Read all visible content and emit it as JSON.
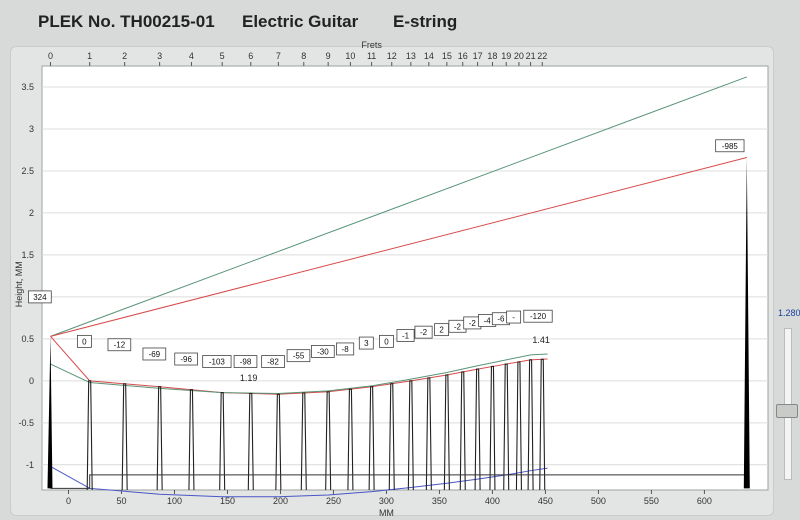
{
  "header": {
    "plek_no": "PLEK No. TH00215-01",
    "instrument": "Electric Guitar",
    "string": "E-string"
  },
  "side_panel": {
    "value": "1.280"
  },
  "chart_data": {
    "type": "line",
    "title": "PLEK No. TH00215-01 Electric Guitar E-string",
    "xlabel": "MM",
    "ylabel": "Height, MM",
    "top_axis_label": "Frets",
    "xlim": [
      -25,
      660
    ],
    "ylim": [
      -1.3,
      3.75
    ],
    "x_ticks": [
      0,
      50,
      100,
      150,
      200,
      250,
      300,
      350,
      400,
      450,
      500,
      550,
      600
    ],
    "y_ticks": [
      -1,
      -0.5,
      0,
      0.5,
      1,
      1.5,
      2,
      2.5,
      3,
      3.5
    ],
    "y_tick_labels": [
      "-1",
      "-0.5",
      "0",
      "0.5",
      "1",
      "1.5",
      "2",
      "2.5",
      "3",
      "3.5"
    ],
    "frets": [
      {
        "label": "0",
        "mm": -17
      },
      {
        "label": "1",
        "mm": 20
      },
      {
        "label": "2",
        "mm": 53
      },
      {
        "label": "3",
        "mm": 86
      },
      {
        "label": "4",
        "mm": 116
      },
      {
        "label": "5",
        "mm": 145
      },
      {
        "label": "6",
        "mm": 172
      },
      {
        "label": "7",
        "mm": 198
      },
      {
        "label": "8",
        "mm": 222
      },
      {
        "label": "9",
        "mm": 245
      },
      {
        "label": "10",
        "mm": 266
      },
      {
        "label": "11",
        "mm": 286
      },
      {
        "label": "12",
        "mm": 305
      },
      {
        "label": "13",
        "mm": 323
      },
      {
        "label": "14",
        "mm": 340
      },
      {
        "label": "15",
        "mm": 357
      },
      {
        "label": "16",
        "mm": 372
      },
      {
        "label": "17",
        "mm": 386
      },
      {
        "label": "18",
        "mm": 400
      },
      {
        "label": "19",
        "mm": 413
      },
      {
        "label": "20",
        "mm": 425
      },
      {
        "label": "21",
        "mm": 436
      },
      {
        "label": "22",
        "mm": 447
      }
    ],
    "series": [
      {
        "color": "#5a9478",
        "x": [
          -17,
          640
        ],
        "y": [
          0.53,
          3.62
        ]
      },
      {
        "color": "#d84a4a",
        "x": [
          -17,
          640
        ],
        "y": [
          0.53,
          2.66
        ]
      },
      {
        "color": "#d84a4a",
        "x": [
          -17,
          20,
          86,
          145,
          198,
          245,
          286,
          323,
          357,
          386,
          413,
          436,
          452
        ],
        "y": [
          0.53,
          0.0,
          -0.07,
          -0.14,
          -0.16,
          -0.13,
          -0.07,
          0.0,
          0.07,
          0.14,
          0.2,
          0.25,
          0.26
        ]
      },
      {
        "color": "#5a9478",
        "x": [
          -17,
          20,
          86,
          145,
          198,
          245,
          286,
          323,
          357,
          386,
          413,
          436,
          452
        ],
        "y": [
          0.2,
          -0.02,
          -0.09,
          -0.14,
          -0.15,
          -0.12,
          -0.06,
          0.02,
          0.1,
          0.18,
          0.25,
          0.31,
          0.32
        ]
      },
      {
        "color": "#4a55c8",
        "x": [
          -17,
          20,
          86,
          145,
          198,
          245,
          286,
          323,
          357,
          386,
          413,
          436,
          452
        ],
        "y": [
          -1.02,
          -1.28,
          -1.35,
          -1.38,
          -1.38,
          -1.36,
          -1.32,
          -1.27,
          -1.22,
          -1.17,
          -1.12,
          -1.07,
          -1.04
        ]
      }
    ],
    "fret_values": [
      "0",
      "-12",
      "-69",
      "-96",
      "-103",
      "-98",
      "-82",
      "-55",
      "-30",
      "-8",
      "3",
      "0",
      "-1",
      "-2",
      "2",
      "-2",
      "-2",
      "-4",
      "-6",
      "-",
      "-120"
    ],
    "fret_value_x": [
      15,
      48,
      81,
      111,
      140,
      167,
      193,
      217,
      240,
      261,
      281,
      300,
      318,
      335,
      352,
      367,
      381,
      395,
      408,
      420,
      443
    ],
    "fret_value_y": [
      0.47,
      0.43,
      0.32,
      0.26,
      0.23,
      0.23,
      0.23,
      0.3,
      0.35,
      0.38,
      0.45,
      0.47,
      0.54,
      0.58,
      0.61,
      0.65,
      0.69,
      0.72,
      0.74,
      0.76,
      0.77
    ],
    "endpoint_labels": [
      {
        "text": "324",
        "x": -27,
        "y": 1.0
      },
      {
        "text": "-985",
        "x": 624,
        "y": 2.8
      }
    ],
    "annotations": [
      {
        "text": "1.19",
        "x": 170,
        "y": 0.0
      },
      {
        "text": "1.41",
        "x": 446,
        "y": 0.45
      }
    ]
  }
}
